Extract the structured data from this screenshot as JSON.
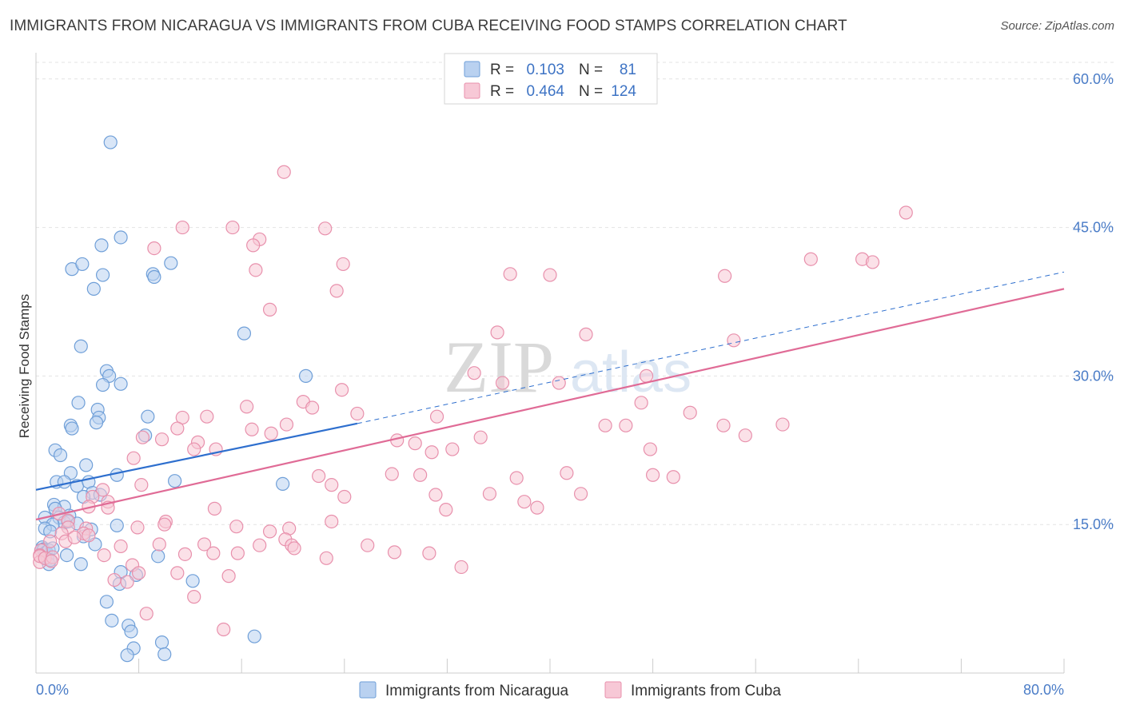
{
  "chart_data": {
    "type": "scatter",
    "title": "IMMIGRANTS FROM NICARAGUA VS IMMIGRANTS FROM CUBA RECEIVING FOOD STAMPS CORRELATION CHART",
    "source": "Source: ZipAtlas.com",
    "ylabel": "Receiving Food Stamps",
    "xlabel": "",
    "xlim": [
      0,
      80
    ],
    "ylim": [
      0,
      62
    ],
    "x_tick_labels": [
      {
        "value": 0,
        "label": "0.0%"
      },
      {
        "value": 80,
        "label": "80.0%"
      }
    ],
    "y_tick_labels": [
      {
        "value": 15,
        "label": "15.0%"
      },
      {
        "value": 30,
        "label": "30.0%"
      },
      {
        "value": 45,
        "label": "45.0%"
      },
      {
        "value": 60,
        "label": "60.0%"
      }
    ],
    "grid": true,
    "watermark": "ZIPatlas",
    "legend": {
      "position": "top-center",
      "entries": [
        {
          "series": "nicaragua",
          "r_label": "R = ",
          "r_value": "0.103",
          "n_label": "N = ",
          "n_value": "81"
        },
        {
          "series": "cuba",
          "r_label": "R = ",
          "r_value": "0.464",
          "n_label": "N = ",
          "n_value": "124"
        }
      ]
    },
    "series": [
      {
        "id": "nicaragua",
        "name": "Immigrants from Nicaragua",
        "color": "#6f9fd8",
        "fill": "#b9d1f0",
        "trend_color": "#2e6fce",
        "trend": {
          "x0": 0,
          "y0": 18.5,
          "x1": 25,
          "y1": 25.2,
          "dashed_to": 80,
          "dashed_y": 40.5
        },
        "points": [
          [
            5.8,
            53.6
          ],
          [
            6.6,
            44
          ],
          [
            5.1,
            43.2
          ],
          [
            10.5,
            41.4
          ],
          [
            2.8,
            40.8
          ],
          [
            3.6,
            41.3
          ],
          [
            9.1,
            40.3
          ],
          [
            9.2,
            40
          ],
          [
            5.2,
            40.2
          ],
          [
            4.5,
            38.8
          ],
          [
            16.2,
            34.3
          ],
          [
            3.5,
            33
          ],
          [
            21,
            30
          ],
          [
            5.5,
            30.5
          ],
          [
            5.7,
            30
          ],
          [
            5.2,
            29.1
          ],
          [
            6.6,
            29.2
          ],
          [
            3.3,
            27.3
          ],
          [
            4.8,
            26.6
          ],
          [
            4.9,
            25.8
          ],
          [
            4.7,
            25.3
          ],
          [
            8.7,
            25.9
          ],
          [
            2.7,
            25
          ],
          [
            2.8,
            24.7
          ],
          [
            8.5,
            24
          ],
          [
            1.5,
            22.5
          ],
          [
            1.9,
            22
          ],
          [
            3.9,
            21
          ],
          [
            6.3,
            20
          ],
          [
            2.7,
            20.2
          ],
          [
            10.8,
            19.4
          ],
          [
            19.2,
            19.1
          ],
          [
            1.6,
            19.3
          ],
          [
            2.2,
            19.3
          ],
          [
            3.2,
            18.9
          ],
          [
            4.1,
            19.3
          ],
          [
            4.4,
            18.2
          ],
          [
            3.7,
            17.8
          ],
          [
            5.0,
            18
          ],
          [
            1.4,
            17
          ],
          [
            2.2,
            16.8
          ],
          [
            1.5,
            16.6
          ],
          [
            2.6,
            15.9
          ],
          [
            0.7,
            15.7
          ],
          [
            1.8,
            15.7
          ],
          [
            2.2,
            15.2
          ],
          [
            1.3,
            15.0
          ],
          [
            2.5,
            15.3
          ],
          [
            3.2,
            15.1
          ],
          [
            6.3,
            14.9
          ],
          [
            0.7,
            14.6
          ],
          [
            1.1,
            14.3
          ],
          [
            4.3,
            14.5
          ],
          [
            3.7,
            13.8
          ],
          [
            4.6,
            13
          ],
          [
            0.5,
            12.7
          ],
          [
            0.6,
            12.4
          ],
          [
            0.4,
            12.4
          ],
          [
            0.7,
            12.1
          ],
          [
            0.6,
            12.5
          ],
          [
            0.8,
            12.2
          ],
          [
            1.0,
            12.4
          ],
          [
            1.3,
            12.6
          ],
          [
            0.9,
            11.5
          ],
          [
            1.0,
            11.0
          ],
          [
            1.1,
            11.4
          ],
          [
            2.4,
            11.9
          ],
          [
            3.5,
            11.0
          ],
          [
            9.5,
            11.8
          ],
          [
            6.6,
            10.2
          ],
          [
            7.8,
            9.9
          ],
          [
            6.5,
            9.0
          ],
          [
            12.2,
            9.3
          ],
          [
            5.5,
            7.2
          ],
          [
            5.9,
            5.3
          ],
          [
            7.2,
            4.8
          ],
          [
            7.4,
            4.2
          ],
          [
            9.8,
            3.1
          ],
          [
            17,
            3.7
          ],
          [
            7.6,
            2.5
          ],
          [
            7.1,
            1.8
          ],
          [
            10,
            1.9
          ]
        ]
      },
      {
        "id": "cuba",
        "name": "Immigrants from Cuba",
        "color": "#e890ac",
        "fill": "#f7c8d6",
        "trend_color": "#e06b96",
        "trend": {
          "x0": 0,
          "y0": 15.5,
          "x1": 80,
          "y1": 38.8
        },
        "points": [
          [
            19.3,
            50.6
          ],
          [
            67.7,
            46.5
          ],
          [
            15.3,
            45
          ],
          [
            11.4,
            45
          ],
          [
            22.5,
            44.9
          ],
          [
            17.4,
            43.8
          ],
          [
            16.9,
            43.2
          ],
          [
            9.2,
            42.9
          ],
          [
            60.3,
            41.8
          ],
          [
            64.3,
            41.8
          ],
          [
            65.1,
            41.5
          ],
          [
            23.9,
            41.3
          ],
          [
            17.1,
            40.7
          ],
          [
            53.6,
            40.1
          ],
          [
            36.9,
            40.3
          ],
          [
            40.0,
            40.2
          ],
          [
            23.4,
            38.6
          ],
          [
            18.2,
            36.7
          ],
          [
            35.9,
            34.4
          ],
          [
            42.8,
            34.2
          ],
          [
            54.3,
            33.6
          ],
          [
            34.1,
            30.3
          ],
          [
            47.5,
            30
          ],
          [
            36.3,
            29.3
          ],
          [
            40.7,
            29.3
          ],
          [
            23.8,
            28.6
          ],
          [
            20.8,
            27.4
          ],
          [
            47.1,
            27.3
          ],
          [
            16.4,
            26.9
          ],
          [
            21.5,
            26.8
          ],
          [
            25.0,
            26.2
          ],
          [
            31.2,
            25.9
          ],
          [
            13.3,
            25.9
          ],
          [
            11.4,
            25.8
          ],
          [
            50.9,
            26.3
          ],
          [
            58.1,
            25.1
          ],
          [
            44.3,
            25
          ],
          [
            45.9,
            25
          ],
          [
            53.5,
            25.0
          ],
          [
            55.2,
            24
          ],
          [
            19.5,
            25.1
          ],
          [
            11,
            24.7
          ],
          [
            16.8,
            24.6
          ],
          [
            18.3,
            24.2
          ],
          [
            8.3,
            23.8
          ],
          [
            9.8,
            23.6
          ],
          [
            12.6,
            23.3
          ],
          [
            28.1,
            23.5
          ],
          [
            34.6,
            23.8
          ],
          [
            29.5,
            23.2
          ],
          [
            12.3,
            22.6
          ],
          [
            14,
            22.6
          ],
          [
            32.4,
            22.6
          ],
          [
            30.8,
            22.3
          ],
          [
            47.8,
            22.6
          ],
          [
            7.6,
            21.7
          ],
          [
            27.7,
            20.1
          ],
          [
            29.9,
            20
          ],
          [
            37.4,
            19.7
          ],
          [
            41.3,
            20.2
          ],
          [
            48.0,
            20.0
          ],
          [
            49.6,
            19.8
          ],
          [
            22.0,
            19.9
          ],
          [
            8.2,
            19
          ],
          [
            23.0,
            19
          ],
          [
            31.1,
            18
          ],
          [
            35.3,
            18.1
          ],
          [
            42.4,
            18.1
          ],
          [
            5.2,
            18.5
          ],
          [
            24.0,
            17.8
          ],
          [
            4.4,
            17.8
          ],
          [
            5.6,
            17.3
          ],
          [
            38.0,
            17.3
          ],
          [
            4.1,
            16.8
          ],
          [
            5.6,
            16.7
          ],
          [
            13.9,
            16.6
          ],
          [
            39.0,
            16.7
          ],
          [
            31.9,
            16.5
          ],
          [
            1.8,
            16.1
          ],
          [
            2.5,
            15.4
          ],
          [
            10.1,
            15.3
          ],
          [
            10.0,
            15.0
          ],
          [
            23.0,
            15.3
          ],
          [
            15.6,
            14.8
          ],
          [
            2.5,
            14.7
          ],
          [
            3.9,
            14.6
          ],
          [
            7.9,
            14.7
          ],
          [
            19.7,
            14.6
          ],
          [
            18.2,
            14.3
          ],
          [
            2.0,
            14.1
          ],
          [
            3.7,
            14.1
          ],
          [
            4.1,
            13.9
          ],
          [
            19.4,
            13.5
          ],
          [
            1.1,
            13.3
          ],
          [
            2.3,
            13.3
          ],
          [
            9.6,
            13
          ],
          [
            13.1,
            13
          ],
          [
            17.4,
            12.9
          ],
          [
            19.9,
            12.9
          ],
          [
            20.1,
            12.6
          ],
          [
            25.8,
            12.9
          ],
          [
            27.9,
            12.2
          ],
          [
            30.6,
            12.1
          ],
          [
            6.6,
            12.8
          ],
          [
            11.6,
            12.0
          ],
          [
            13.8,
            12.1
          ],
          [
            15.7,
            12.1
          ],
          [
            0.4,
            12.4
          ],
          [
            0.3,
            11.9
          ],
          [
            0.3,
            11.2
          ],
          [
            0.3,
            11.8
          ],
          [
            0.7,
            11.6
          ],
          [
            1.3,
            11.7
          ],
          [
            1.2,
            11.3
          ],
          [
            3.0,
            13.7
          ],
          [
            5.3,
            11.9
          ],
          [
            22.6,
            11.6
          ],
          [
            33.1,
            10.7
          ],
          [
            7.5,
            10.9
          ],
          [
            8.0,
            10.1
          ],
          [
            11.0,
            10.1
          ],
          [
            15.0,
            9.8
          ],
          [
            6.1,
            9.4
          ],
          [
            7.1,
            9.2
          ],
          [
            12.3,
            7.7
          ],
          [
            8.6,
            6.0
          ],
          [
            14.6,
            4.4
          ]
        ]
      }
    ]
  }
}
